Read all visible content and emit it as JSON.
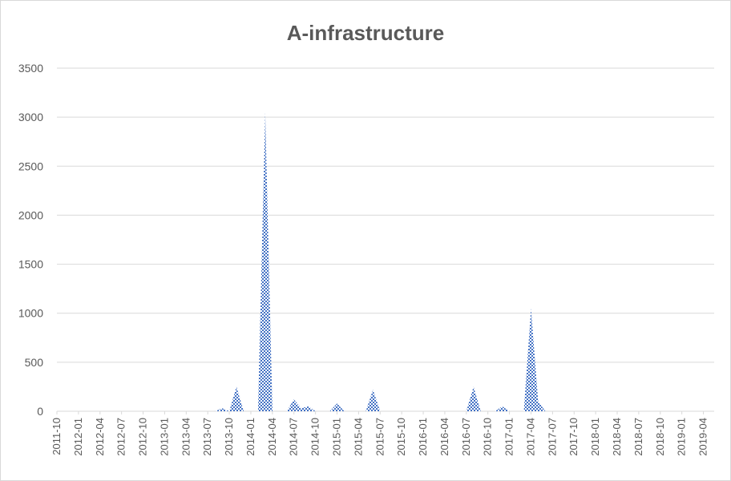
{
  "chart_data": {
    "type": "area",
    "title": "A-infrastructure",
    "xlabel": "",
    "ylabel": "",
    "ylim": [
      0,
      3500
    ],
    "yticks": [
      0,
      500,
      1000,
      1500,
      2000,
      2500,
      3000,
      3500
    ],
    "grid": true,
    "legend": "none",
    "fill_color": "#4472c4",
    "x_tick_labels": [
      "2011-10",
      "2012-01",
      "2012-04",
      "2012-07",
      "2012-10",
      "2013-01",
      "2013-04",
      "2013-07",
      "2013-10",
      "2014-01",
      "2014-04",
      "2014-07",
      "2014-10",
      "2015-01",
      "2015-04",
      "2015-07",
      "2015-10",
      "2016-01",
      "2016-04",
      "2016-07",
      "2016-10",
      "2017-01",
      "2017-04",
      "2017-07",
      "2017-10",
      "2018-01",
      "2018-04",
      "2018-07",
      "2018-10",
      "2019-01",
      "2019-04"
    ],
    "series": [
      {
        "points": [
          {
            "x": "2011-10",
            "y": 0
          },
          {
            "x": "2013-08",
            "y": 0
          },
          {
            "x": "2013-09",
            "y": 30
          },
          {
            "x": "2013-10",
            "y": 0
          },
          {
            "x": "2013-11",
            "y": 250
          },
          {
            "x": "2013-12",
            "y": 0
          },
          {
            "x": "2014-02",
            "y": 0
          },
          {
            "x": "2014-03",
            "y": 3050
          },
          {
            "x": "2014-04",
            "y": 0
          },
          {
            "x": "2014-06",
            "y": 0
          },
          {
            "x": "2014-07",
            "y": 120
          },
          {
            "x": "2014-08",
            "y": 30
          },
          {
            "x": "2014-09",
            "y": 50
          },
          {
            "x": "2014-10",
            "y": 0
          },
          {
            "x": "2014-12",
            "y": 0
          },
          {
            "x": "2015-01",
            "y": 80
          },
          {
            "x": "2015-02",
            "y": 0
          },
          {
            "x": "2015-05",
            "y": 0
          },
          {
            "x": "2015-06",
            "y": 220
          },
          {
            "x": "2015-07",
            "y": 0
          },
          {
            "x": "2016-07",
            "y": 0
          },
          {
            "x": "2016-08",
            "y": 250
          },
          {
            "x": "2016-09",
            "y": 0
          },
          {
            "x": "2016-11",
            "y": 0
          },
          {
            "x": "2016-12",
            "y": 50
          },
          {
            "x": "2017-01",
            "y": 0
          },
          {
            "x": "2017-03",
            "y": 0
          },
          {
            "x": "2017-04",
            "y": 1050
          },
          {
            "x": "2017-05",
            "y": 100
          },
          {
            "x": "2017-06",
            "y": 0
          },
          {
            "x": "2019-06",
            "y": 0
          }
        ]
      }
    ]
  }
}
